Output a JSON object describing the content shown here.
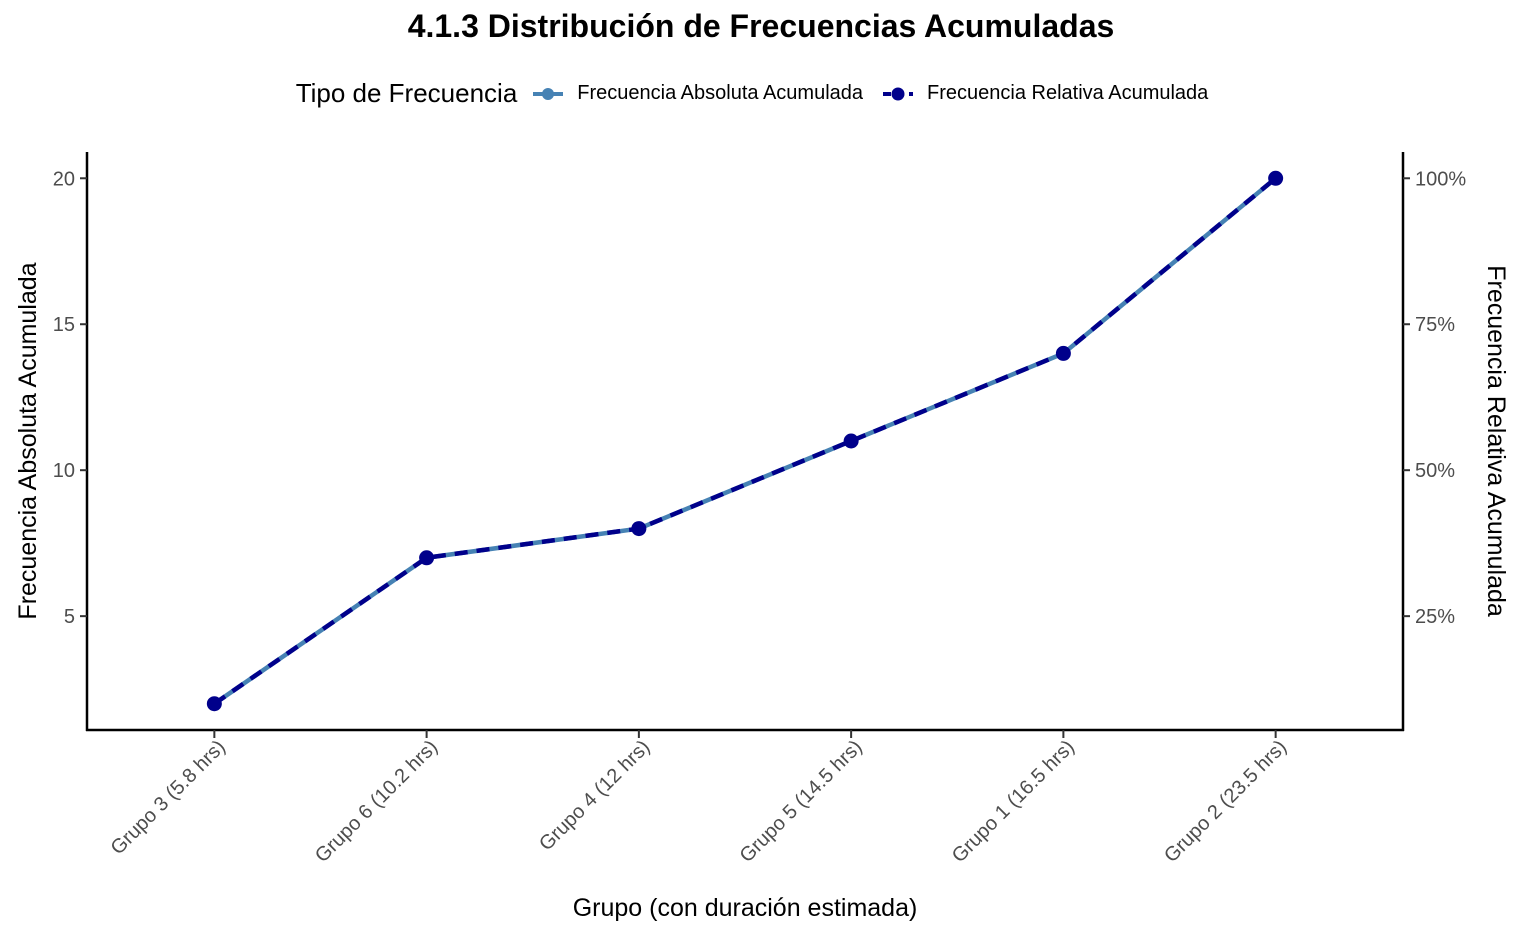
{
  "chart_data": {
    "type": "line",
    "title": "4.1.3 Distribución de Frecuencias Acumuladas",
    "xlabel": "Grupo (con duración estimada)",
    "ylabel": "Frecuencia Absoluta Acumulada",
    "y2label": "Frecuencia Relativa Acumulada",
    "legend_title": "Tipo de Frecuencia",
    "legend_position": "top",
    "grid": false,
    "categories": [
      "Grupo 3 (5.8 hrs)",
      "Grupo 6 (10.2 hrs)",
      "Grupo 4 (12 hrs)",
      "Grupo 5 (14.5 hrs)",
      "Grupo 1 (16.5 hrs)",
      "Grupo 2 (23.5 hrs)"
    ],
    "ylim": [
      1.1,
      20.9
    ],
    "yticks": [
      5,
      10,
      15,
      20
    ],
    "y2ticks": [
      0.25,
      0.5,
      0.75,
      1.0
    ],
    "y2tick_labels": [
      "25%",
      "50%",
      "75%",
      "100%"
    ],
    "series": [
      {
        "name": "Frecuencia Absoluta Acumulada",
        "values": [
          2,
          7,
          8,
          11,
          14,
          20
        ],
        "color": "#4682B4",
        "style": "solid"
      },
      {
        "name": "Frecuencia Relativa Acumulada",
        "values": [
          0.1,
          0.35,
          0.4,
          0.55,
          0.7,
          1.0
        ],
        "color": "#00008B",
        "style": "dashed",
        "axis": "right"
      }
    ]
  }
}
